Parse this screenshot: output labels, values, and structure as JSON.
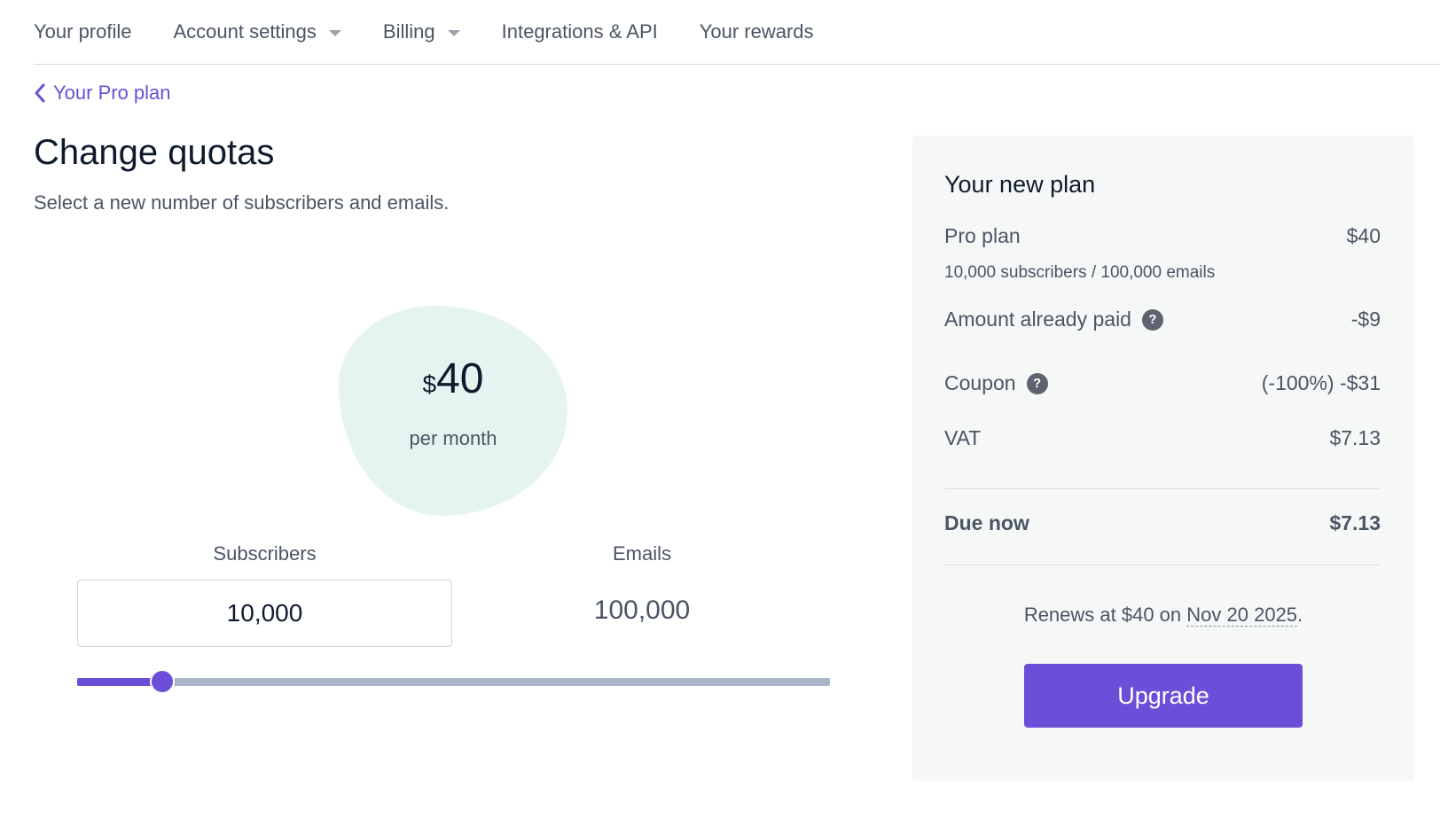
{
  "nav": {
    "items": [
      {
        "label": "Your profile",
        "dropdown": false
      },
      {
        "label": "Account settings",
        "dropdown": true
      },
      {
        "label": "Billing",
        "dropdown": true
      },
      {
        "label": "Integrations & API",
        "dropdown": false
      },
      {
        "label": "Your rewards",
        "dropdown": false
      }
    ]
  },
  "breadcrumb": {
    "back_label": "Your Pro plan",
    "icon": "chevron-left-icon"
  },
  "page": {
    "title": "Change quotas",
    "subtitle": "Select a new number of subscribers and emails."
  },
  "price": {
    "currency": "$",
    "amount": "40",
    "period": "per month"
  },
  "quotas": {
    "subscribers_label": "Subscribers",
    "subscribers_value": "10,000",
    "emails_label": "Emails",
    "emails_value": "100,000",
    "slider_fraction": 0.113
  },
  "summary": {
    "title": "Your new plan",
    "plan_name": "Pro plan",
    "plan_price": "$40",
    "plan_detail": "10,000 subscribers / 100,000 emails",
    "already_paid_label": "Amount already paid",
    "already_paid_value": "-$9",
    "coupon_label": "Coupon",
    "coupon_value": "(-100%) -$31",
    "vat_label": "VAT",
    "vat_value": "$7.13",
    "due_label": "Due now",
    "due_value": "$7.13",
    "renews_prefix": "Renews at $40 on ",
    "renews_date": "Nov 20 2025",
    "renews_suffix": ".",
    "upgrade_label": "Upgrade"
  },
  "colors": {
    "accent": "#6b4fd8",
    "blob": "#e6f4f1",
    "panel": "#f6f8f8",
    "track": "#aab4c8"
  }
}
